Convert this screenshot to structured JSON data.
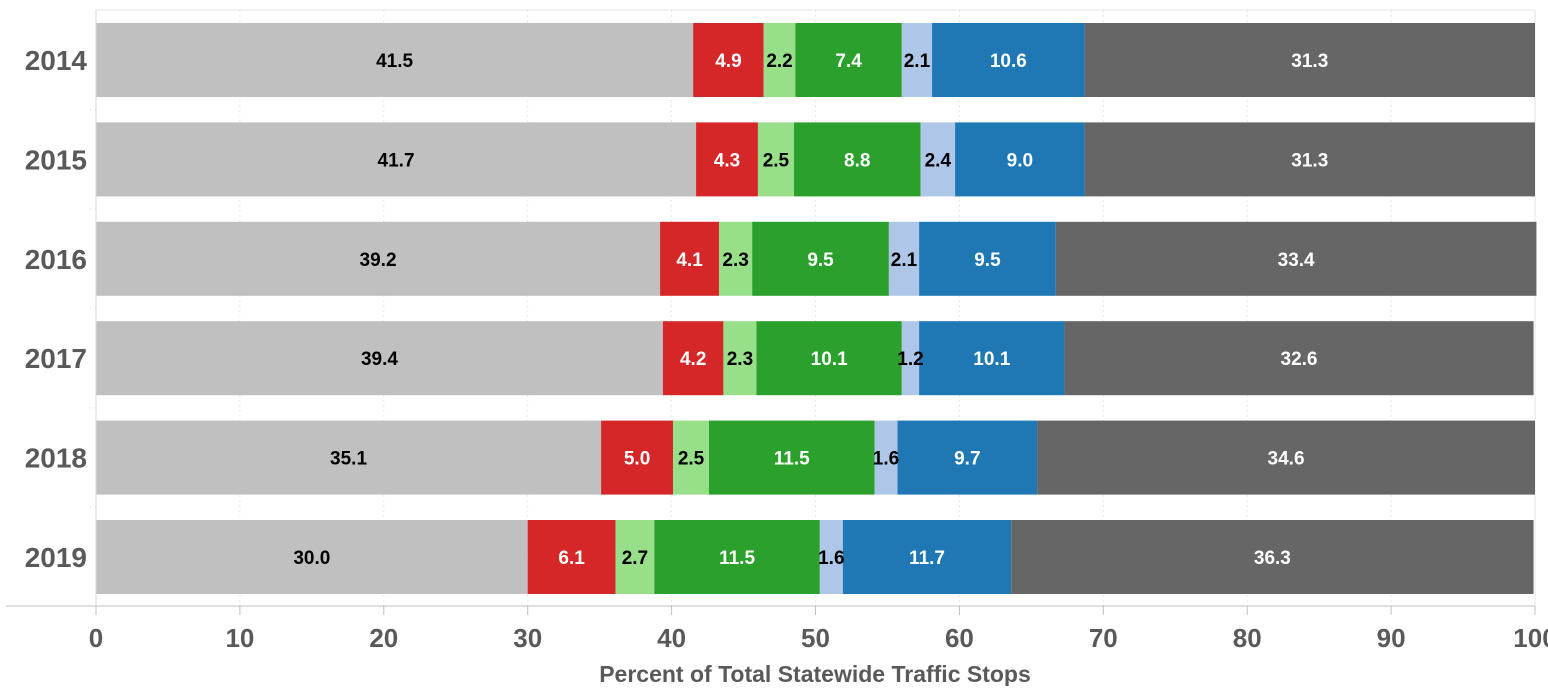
{
  "chart_data": {
    "type": "bar",
    "orientation": "horizontal",
    "stacked": true,
    "title": "",
    "xlabel": "Percent of Total Statewide Traffic Stops",
    "ylabel": "",
    "xlim": [
      0,
      100
    ],
    "xticks": [
      "0",
      "10",
      "20",
      "30",
      "40",
      "50",
      "60",
      "70",
      "80",
      "90",
      "100"
    ],
    "categories": [
      "2014",
      "2015",
      "2016",
      "2017",
      "2018",
      "2019"
    ],
    "grid": "vertical",
    "legend": "none",
    "series": [
      {
        "color": "#c0c0c0",
        "label_color": "#000000",
        "values": [
          41.5,
          41.7,
          39.2,
          39.4,
          35.1,
          30.0
        ]
      },
      {
        "color": "#d62728",
        "label_color": "#ffffff",
        "values": [
          4.9,
          4.3,
          4.1,
          4.2,
          5.0,
          6.1
        ]
      },
      {
        "color": "#98df8a",
        "label_color": "#000000",
        "values": [
          2.2,
          2.5,
          2.3,
          2.3,
          2.5,
          2.7
        ]
      },
      {
        "color": "#2ca02c",
        "label_color": "#ffffff",
        "values": [
          7.4,
          8.8,
          9.5,
          10.1,
          11.5,
          11.5
        ]
      },
      {
        "color": "#aec7e8",
        "label_color": "#000000",
        "values": [
          2.1,
          2.4,
          2.1,
          1.2,
          1.6,
          1.6
        ]
      },
      {
        "color": "#1f77b4",
        "label_color": "#ffffff",
        "values": [
          10.6,
          9.0,
          9.5,
          10.1,
          9.7,
          11.7
        ]
      },
      {
        "color": "#666666",
        "label_color": "#ffffff",
        "values": [
          31.3,
          31.3,
          33.4,
          32.6,
          34.6,
          36.3
        ]
      }
    ]
  }
}
